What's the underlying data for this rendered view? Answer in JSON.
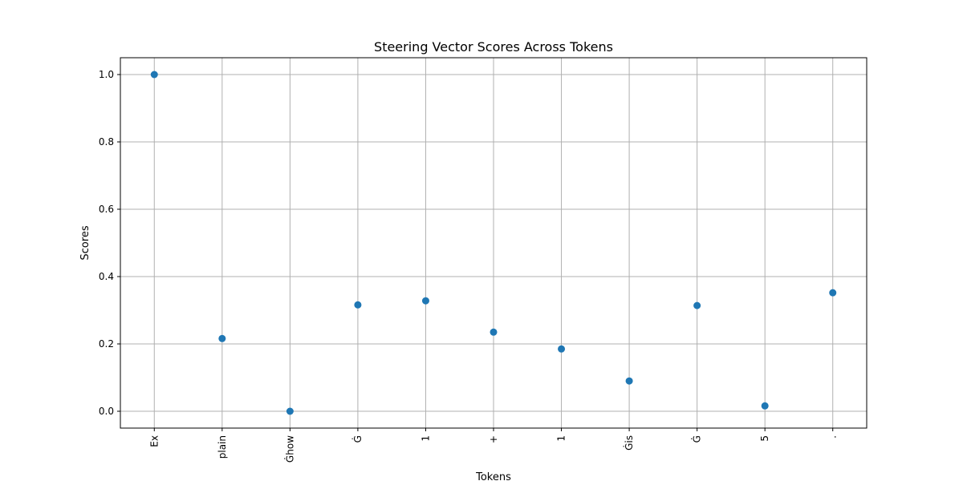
{
  "chart_data": {
    "type": "scatter",
    "title": "Steering Vector Scores Across Tokens",
    "xlabel": "Tokens",
    "ylabel": "Scores",
    "categories": [
      "Ex",
      "plain",
      "Ġhow",
      "Ġ",
      "1",
      "+",
      "1",
      "Ġis",
      "Ġ",
      "5",
      "."
    ],
    "values": [
      1.0,
      0.216,
      0.0,
      0.316,
      0.328,
      0.235,
      0.185,
      0.09,
      0.314,
      0.016,
      0.352
    ],
    "ylim": [
      -0.05,
      1.05
    ],
    "yticks": [
      0.0,
      0.2,
      0.4,
      0.6,
      0.8,
      1.0
    ],
    "ytick_labels": [
      "0.0",
      "0.2",
      "0.4",
      "0.6",
      "0.8",
      "1.0"
    ],
    "grid": true,
    "color": "#1f77b4",
    "grid_color": "#b0b0b0"
  }
}
